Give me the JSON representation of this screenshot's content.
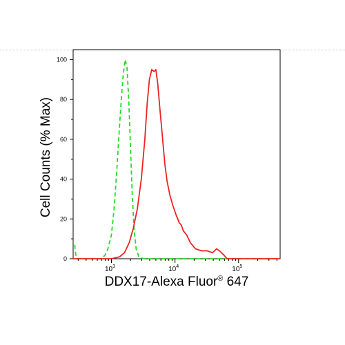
{
  "chart_data": {
    "type": "line",
    "title": "",
    "xlabel": "DDX17-Alexa Fluor",
    "xlabel_mark": "®",
    "xlabel_tail": "647",
    "ylabel": "Cell Counts (% Max)",
    "x_scale": "log",
    "xlim": [
      250,
      450000
    ],
    "ylim": [
      0,
      105
    ],
    "yticks": [
      0,
      20,
      40,
      60,
      80,
      100
    ],
    "xticks": [
      {
        "base": "10",
        "exp": "3",
        "value": 1000
      },
      {
        "base": "10",
        "exp": "4",
        "value": 10000
      },
      {
        "base": "10",
        "exp": "5",
        "value": 100000
      }
    ],
    "grid": false,
    "legend": "none",
    "series": [
      {
        "color": "#22dd22",
        "style": "dashed",
        "points": [
          [
            265,
            7
          ],
          [
            275,
            2
          ],
          [
            290,
            0
          ],
          [
            700,
            0
          ],
          [
            800,
            2
          ],
          [
            880,
            5
          ],
          [
            1000,
            12
          ],
          [
            1100,
            25
          ],
          [
            1220,
            45
          ],
          [
            1330,
            65
          ],
          [
            1430,
            80
          ],
          [
            1530,
            92
          ],
          [
            1640,
            100
          ],
          [
            1760,
            96
          ],
          [
            1880,
            78
          ],
          [
            2000,
            55
          ],
          [
            2130,
            32
          ],
          [
            2270,
            15
          ],
          [
            2450,
            5
          ],
          [
            2700,
            1
          ],
          [
            3200,
            0
          ],
          [
            450000,
            0
          ]
        ]
      },
      {
        "color": "#ee2222",
        "style": "solid",
        "points": [
          [
            250,
            0
          ],
          [
            1000,
            0
          ],
          [
            1350,
            1
          ],
          [
            1600,
            3
          ],
          [
            1900,
            8
          ],
          [
            2200,
            15
          ],
          [
            2550,
            25
          ],
          [
            2950,
            40
          ],
          [
            3350,
            60
          ],
          [
            3650,
            78
          ],
          [
            3950,
            90
          ],
          [
            4300,
            95
          ],
          [
            4700,
            94
          ],
          [
            5000,
            95
          ],
          [
            5350,
            88
          ],
          [
            5800,
            75
          ],
          [
            6300,
            62
          ],
          [
            6900,
            48
          ],
          [
            7500,
            39
          ],
          [
            8300,
            32
          ],
          [
            9200,
            27
          ],
          [
            10400,
            22
          ],
          [
            11700,
            18
          ],
          [
            12500,
            17
          ],
          [
            13500,
            14
          ],
          [
            15200,
            12
          ],
          [
            17500,
            8
          ],
          [
            21000,
            5
          ],
          [
            26000,
            4
          ],
          [
            32000,
            4
          ],
          [
            39000,
            3
          ],
          [
            45000,
            5
          ],
          [
            50000,
            4
          ],
          [
            58000,
            2
          ],
          [
            66000,
            0
          ],
          [
            450000,
            0
          ]
        ]
      }
    ]
  }
}
